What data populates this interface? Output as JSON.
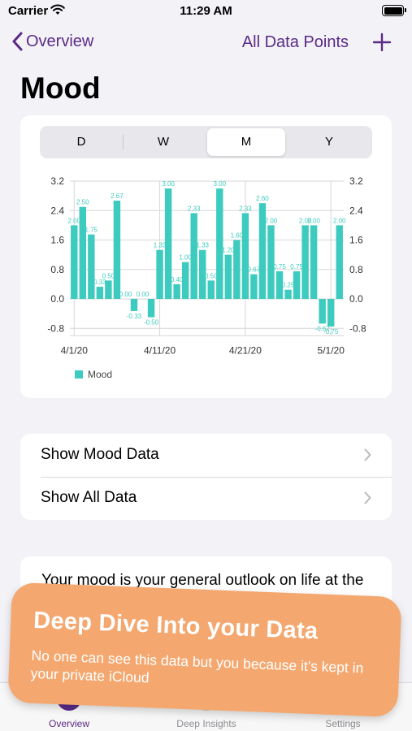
{
  "status_bar": {
    "carrier": "Carrier",
    "time": "11:29 AM"
  },
  "nav": {
    "back_label": "Overview",
    "all_data_label": "All Data Points"
  },
  "page_title": "Mood",
  "segmented": {
    "options": [
      "D",
      "W",
      "M",
      "Y"
    ],
    "selected": "M"
  },
  "chart_data": {
    "type": "bar",
    "legend": "Mood",
    "ylim": [
      -1.0,
      3.2
    ],
    "y_ticks": [
      "3.2",
      "2.4",
      "1.6",
      "0.8",
      "0.0",
      "-0.8"
    ],
    "x_ticks": [
      "4/1/20",
      "4/11/20",
      "4/21/20",
      "5/1/20"
    ],
    "values": [
      2.0,
      2.5,
      1.75,
      0.33,
      0.5,
      2.67,
      0.0,
      -0.33,
      0.0,
      -0.5,
      1.33,
      3.0,
      0.4,
      1.0,
      2.33,
      1.33,
      0.5,
      3.0,
      1.2,
      1.6,
      2.33,
      0.67,
      2.6,
      2.0,
      0.75,
      0.25,
      0.75,
      2.0,
      2.0,
      -0.67,
      -0.75,
      2.0
    ],
    "labels": [
      "2.00",
      "2.50",
      "1.75",
      "0.33",
      "0.50",
      "2.67",
      "0.00",
      "-0.33",
      "0.00",
      "-0.50",
      "1.33",
      "3.00",
      "0.40",
      "1.00",
      "2.33",
      "1.33",
      "0.50",
      "3.00",
      "1.20",
      "1.60",
      "2.33",
      "0.67",
      "2.60",
      "2.00",
      "0.75",
      "0.25",
      "0.75",
      "2.00",
      "2.00",
      "-0.67",
      "-0.75",
      "2.00"
    ],
    "color": "#3ecbbf",
    "grid": true
  },
  "list": {
    "items": [
      "Show Mood Data",
      "Show All Data"
    ]
  },
  "description": "Your mood is your general outlook on life at the point when the data point is",
  "tabs": [
    "Overview",
    "Deep Insights",
    "Settings"
  ],
  "toast": {
    "title": "Deep Dive Into your Data",
    "body": "No one can see this data but you because it's kept in your private iCloud"
  },
  "colors": {
    "accent": "#5b2a86",
    "bar": "#3ecbbf",
    "toast": "#f4a870"
  }
}
